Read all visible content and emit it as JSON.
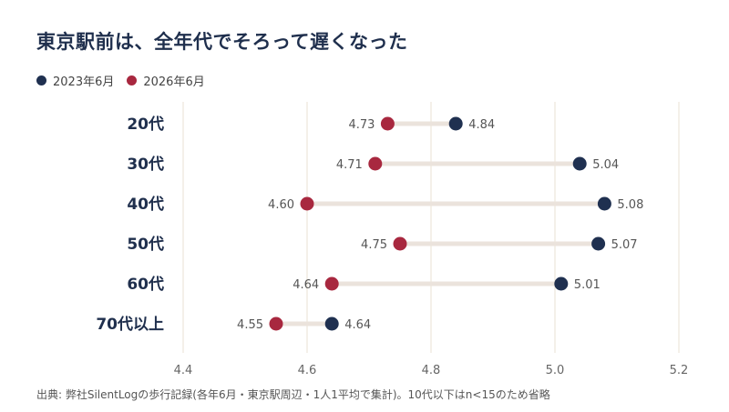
{
  "title": "東京駅前は、全年代でそろって遅くなった",
  "source": "出典: 弊社SilentLogの歩行記録(各年6月・東京駅周辺・1人1平均で集計)。10代以下はn<15のため省略",
  "colors": {
    "series_2023": "#1f3050",
    "series_2026": "#a8283f",
    "connector": "#ebe3dc",
    "grid": "#e9e1d3",
    "category_text": "#1f2f4d",
    "value_text": "#555555",
    "tick_text": "#666666"
  },
  "chart_data": {
    "type": "dumbbell",
    "categories": [
      "20代",
      "30代",
      "40代",
      "50代",
      "60代",
      "70代以上"
    ],
    "series": [
      {
        "name": "2023年6月",
        "values": [
          4.84,
          5.04,
          5.08,
          5.07,
          5.01,
          4.64
        ]
      },
      {
        "name": "2026年6月",
        "values": [
          4.73,
          4.71,
          4.6,
          4.75,
          4.64,
          4.55
        ]
      }
    ],
    "value_labels_2023": [
      "4.84",
      "5.04",
      "5.08",
      "5.07",
      "5.01",
      "4.64"
    ],
    "value_labels_2026": [
      "4.73",
      "4.71",
      "4.60",
      "4.75",
      "4.64",
      "4.55"
    ],
    "xlim": [
      4.4,
      5.2
    ],
    "xticks": [
      4.4,
      4.6,
      4.8,
      5.0,
      5.2
    ],
    "xtick_labels": [
      "4.4",
      "4.6",
      "4.8",
      "5.0",
      "5.2"
    ],
    "grid": true,
    "legend_position": "top-left"
  }
}
